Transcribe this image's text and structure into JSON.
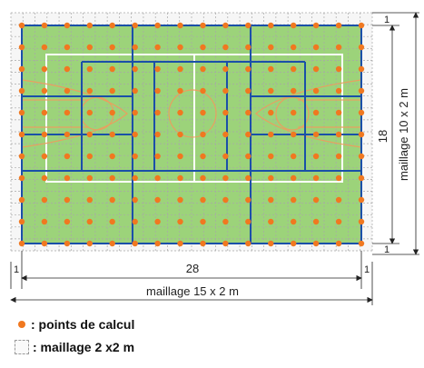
{
  "dimensions": {
    "field_width": "28",
    "field_height": "18",
    "margin_top": "1",
    "margin_bottom": "1",
    "margin_left": "1",
    "margin_right": "1"
  },
  "labels": {
    "mesh_horizontal": "maillage 15 x 2 m",
    "mesh_vertical": "maillage 10 x 2 m"
  },
  "legend": {
    "points_label": ": points de calcul",
    "grid_label": ": maillage 2 x2 m"
  },
  "colors": {
    "field": "#9cd37a",
    "grid_blue": "#1a50a8",
    "calc_points": "#f07820",
    "court_lines": "#ffffff",
    "court_markings": "#e8a060",
    "dashed_grid": "#9a9a9a"
  }
}
